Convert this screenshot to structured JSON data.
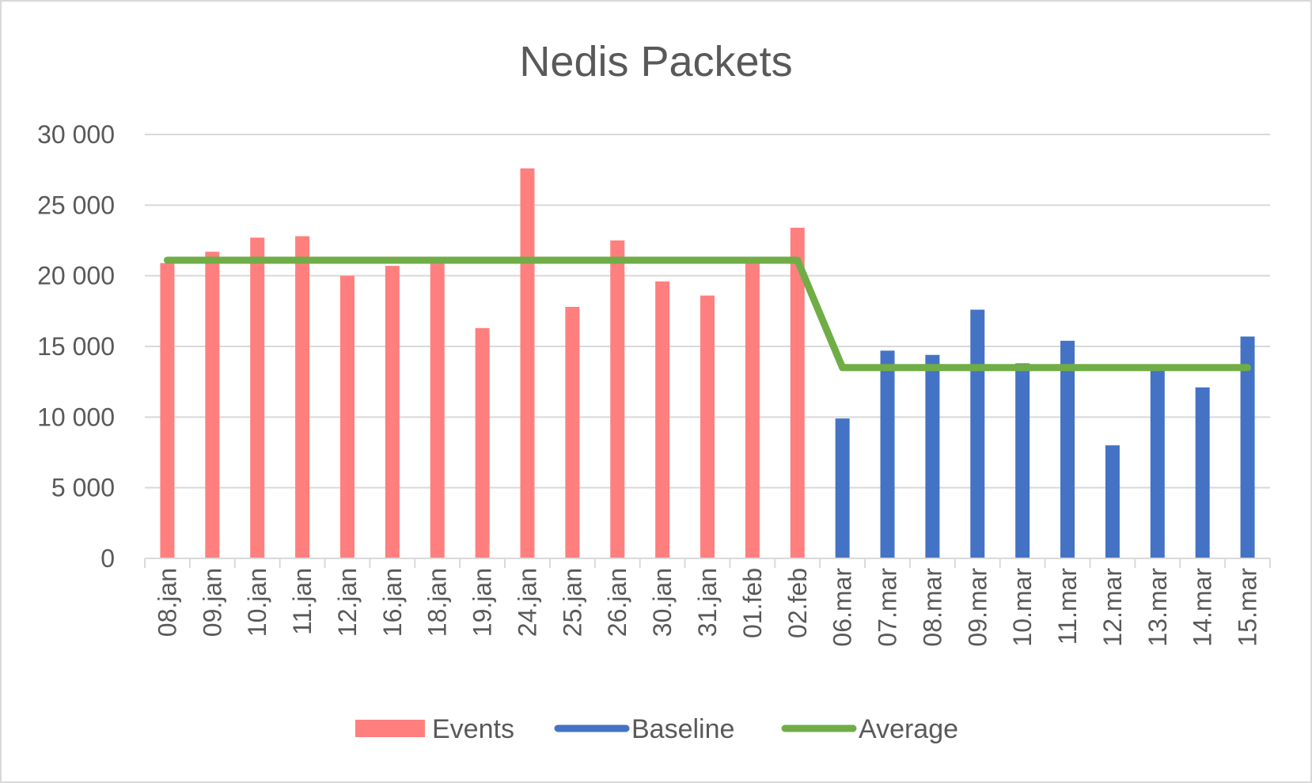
{
  "chart_data": {
    "type": "bar",
    "title": "Nedis Packets",
    "xlabel": "",
    "ylabel": "",
    "ylim": [
      0,
      30000
    ],
    "yticks": [
      0,
      5000,
      10000,
      15000,
      20000,
      25000,
      30000
    ],
    "ytick_labels": [
      "0",
      "5 000",
      "10 000",
      "15 000",
      "20 000",
      "25 000",
      "30 000"
    ],
    "categories": [
      "08.jan",
      "09.jan",
      "10.jan",
      "11.jan",
      "12.jan",
      "16.jan",
      "18.jan",
      "19.jan",
      "24.jan",
      "25.jan",
      "26.jan",
      "30.jan",
      "31.jan",
      "01.feb",
      "02.feb",
      "06.mar",
      "07.mar",
      "08.mar",
      "09.mar",
      "10.mar",
      "11.mar",
      "12.mar",
      "13.mar",
      "14.mar",
      "15.mar"
    ],
    "grid": true,
    "legend_position": "bottom",
    "series": [
      {
        "name": "Events",
        "kind": "bar",
        "color": "#FF7F7F",
        "values": [
          20900,
          21700,
          22700,
          22800,
          20000,
          20700,
          21000,
          16300,
          27600,
          17800,
          22500,
          19600,
          18600,
          21200,
          23400,
          null,
          null,
          null,
          null,
          null,
          null,
          null,
          null,
          null,
          null
        ]
      },
      {
        "name": "Baseline",
        "kind": "bar",
        "color": "#4472C4",
        "values": [
          null,
          null,
          null,
          null,
          null,
          null,
          null,
          null,
          null,
          null,
          null,
          null,
          null,
          null,
          null,
          9900,
          14700,
          14400,
          17600,
          13800,
          15400,
          8000,
          13300,
          12100,
          15700
        ]
      },
      {
        "name": "Average",
        "kind": "line",
        "color": "#70AD47",
        "values": [
          21100,
          21100,
          21100,
          21100,
          21100,
          21100,
          21100,
          21100,
          21100,
          21100,
          21100,
          21100,
          21100,
          21100,
          21100,
          13500,
          13500,
          13500,
          13500,
          13500,
          13500,
          13500,
          13500,
          13500,
          13500
        ]
      }
    ]
  }
}
